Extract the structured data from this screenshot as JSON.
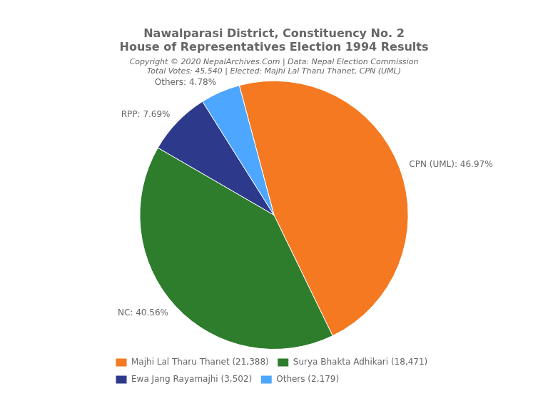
{
  "chart_data": {
    "type": "pie",
    "title": [
      "Nawalparasi District, Constituency No. 2",
      "House of Representatives Election 1994 Results"
    ],
    "subtitle": [
      "Copyright © 2020 NepalArchives.Com | Data: Nepal Election Commission",
      "Total Votes: 45,540 | Elected: Majhi Lal Tharu Thanet, CPN (UML)"
    ],
    "categories": [
      "Majhi Lal Tharu Thanet (21,388)",
      "Surya Bhakta Adhikari (18,471)",
      "Ewa Jang Rayamajhi (3,502)",
      "Others (2,179)"
    ],
    "values": [
      46.97,
      40.56,
      7.69,
      4.78
    ],
    "value_labels": [
      "CPN (UML): 46.97%",
      "NC: 40.56%",
      "RPP: 7.69%",
      "Others: 4.78%"
    ],
    "colors": [
      "#f47920",
      "#2d7d2d",
      "#2d3a8c",
      "#4da6ff"
    ],
    "data_labels": true,
    "legend": "lower left"
  }
}
